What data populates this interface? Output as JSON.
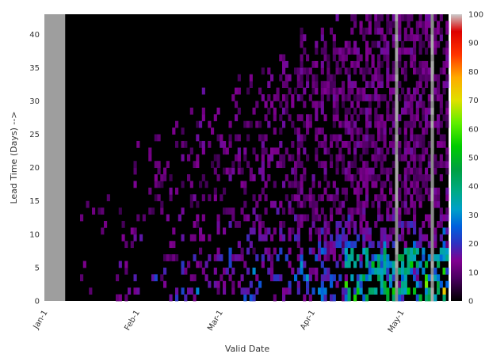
{
  "chart_data": {
    "type": "heatmap",
    "xlabel": "Valid Date",
    "ylabel": "Lead Time (Days) -->",
    "x_ticks": [
      "Jan-1",
      "Feb-1",
      "Mar-1",
      "Apr-1",
      "May-1"
    ],
    "y_ticks": [
      "0",
      "5",
      "10",
      "15",
      "20",
      "25",
      "30",
      "35",
      "40"
    ],
    "ylim": [
      0,
      43
    ],
    "colorbar": {
      "ticks": [
        "0",
        "10",
        "20",
        "30",
        "40",
        "50",
        "60",
        "70",
        "80",
        "90",
        "100"
      ],
      "range": [
        0,
        100
      ],
      "colormap": "nipy_spectral"
    },
    "missing_color": "#9e9e9e",
    "background_color": "#000000",
    "missing_period": {
      "from": "Jan-1",
      "to": "Jan-7"
    },
    "note_grid": "columns are daily valid dates from Jan-1 to mid-May; rows are lead days 0-43"
  }
}
